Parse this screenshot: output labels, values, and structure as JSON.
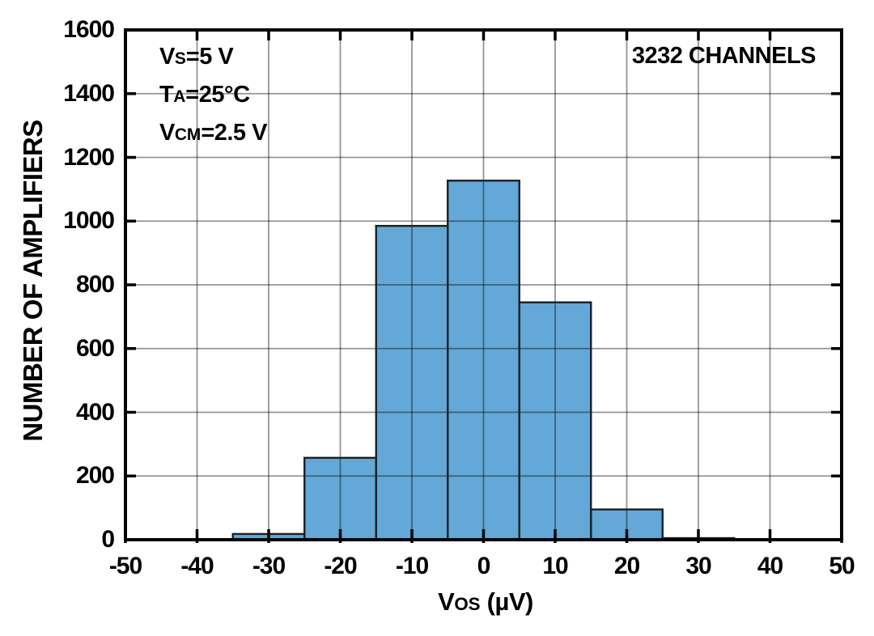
{
  "chart_data": {
    "type": "bar",
    "subtype": "histogram",
    "title": "",
    "ylabel": "NUMBER OF AMPLIFIERS",
    "xlabel": {
      "pre": "V",
      "sub": "OS",
      "post": " (µV)"
    },
    "xlim": [
      -50,
      50
    ],
    "ylim": [
      0,
      1600
    ],
    "xticks": [
      -50,
      -40,
      -30,
      -20,
      -10,
      0,
      10,
      20,
      30,
      40,
      50
    ],
    "yticks": [
      0,
      200,
      400,
      600,
      800,
      1000,
      1200,
      1400,
      1600
    ],
    "grid": true,
    "legend": "none",
    "bin_width": 10,
    "bin_centers": [
      -30,
      -20,
      -10,
      0,
      10,
      20,
      30
    ],
    "values": [
      18,
      257,
      985,
      1127,
      745,
      95,
      5
    ],
    "total_channels": 3232,
    "colors": {
      "bar_fill": "#63a8d6",
      "bar_edge": "#13222e",
      "grid_overlay": "rgba(0,0,0,0.42)",
      "axis": "#000000",
      "background": "#ffffff"
    },
    "annotations": {
      "conditions": [
        {
          "pre": "V",
          "sub": "S",
          "post": "=5 V"
        },
        {
          "pre": "T",
          "sub": "A",
          "post": "=25°C"
        },
        {
          "pre": "V",
          "sub": "CM",
          "post": "=2.5 V"
        }
      ],
      "channels_label": "3232 CHANNELS"
    }
  }
}
